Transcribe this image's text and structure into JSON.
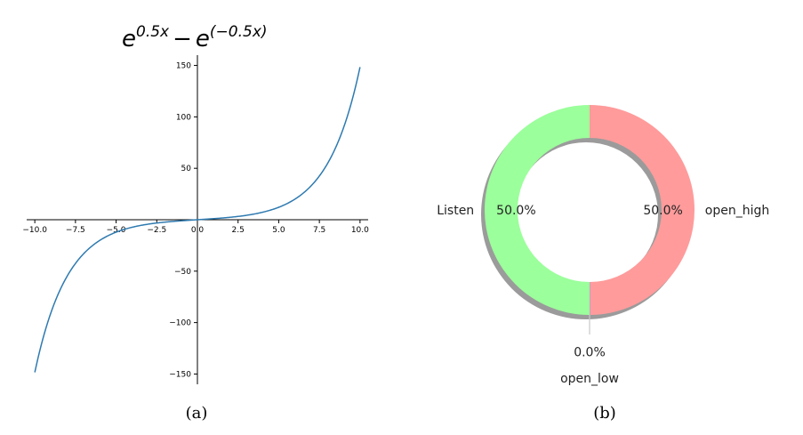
{
  "chart_data": [
    {
      "type": "line",
      "title": {
        "base1": "e",
        "exp1": "0.5x",
        "op": "−",
        "base2": "e",
        "exp2": "(−0.5x)"
      },
      "xlim": [
        -10.5,
        10.5
      ],
      "ylim": [
        -160,
        160
      ],
      "x_ticks": [
        -10.0,
        -7.5,
        -5.0,
        -2.5,
        0.0,
        2.5,
        5.0,
        7.5,
        10.0
      ],
      "x_tick_labels": [
        "−10.0",
        "−7.5",
        "−5.0",
        "−2.5",
        "0.0",
        "2.5",
        "5.0",
        "7.5",
        "10.0"
      ],
      "y_ticks": [
        -150,
        -100,
        -50,
        50,
        100,
        150
      ],
      "y_tick_labels": [
        "−150",
        "−100",
        "−50",
        "50",
        "100",
        "150"
      ],
      "function": {
        "a": 0.5,
        "x_min": -10,
        "x_max": 10
      },
      "line_color": "#2e7ab0",
      "spines": "centered",
      "grid": false,
      "caption": "(a)"
    },
    {
      "type": "pie",
      "style": "donut",
      "slices": [
        {
          "label": "open_high",
          "value": 50.0,
          "pct_label": "50.0%",
          "color": "#ff9b9b"
        },
        {
          "label": "open_low",
          "value": 0.0,
          "pct_label": "0.0%",
          "color": "#9b9bff"
        },
        {
          "label": "Listen",
          "value": 50.0,
          "pct_label": "50.0%",
          "color": "#9bff9b"
        }
      ],
      "start_angle_deg": 90,
      "counterclock": false,
      "shadow": true,
      "caption": "(b)"
    }
  ]
}
